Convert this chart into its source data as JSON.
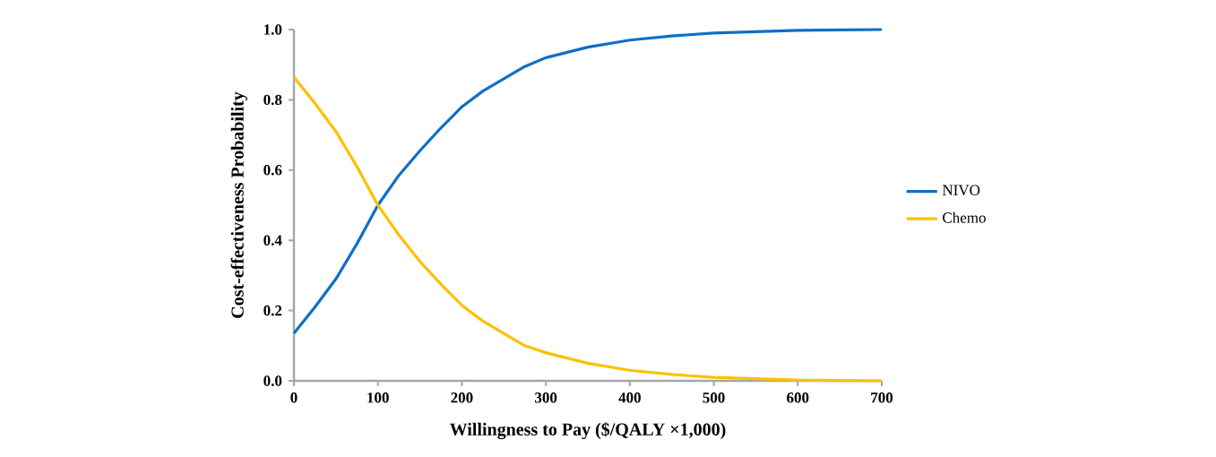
{
  "chart_data": {
    "type": "line",
    "xlabel": "Willingness to Pay ($/QALY ×1,000)",
    "ylabel": "Cost-effectiveness Probability",
    "x": [
      0,
      25,
      50,
      75,
      100,
      125,
      150,
      175,
      200,
      225,
      250,
      275,
      300,
      350,
      400,
      450,
      500,
      550,
      600,
      650,
      700
    ],
    "series": [
      {
        "name": "NIVO",
        "color": "#0f6fc6",
        "values": [
          0.135,
          0.21,
          0.29,
          0.39,
          0.5,
          0.585,
          0.655,
          0.72,
          0.78,
          0.825,
          0.86,
          0.895,
          0.92,
          0.95,
          0.97,
          0.982,
          0.99,
          0.994,
          0.998,
          0.999,
          1.0
        ]
      },
      {
        "name": "Chemo",
        "color": "#ffc000",
        "values": [
          0.865,
          0.79,
          0.71,
          0.61,
          0.5,
          0.415,
          0.34,
          0.275,
          0.215,
          0.17,
          0.135,
          0.1,
          0.08,
          0.05,
          0.03,
          0.018,
          0.01,
          0.006,
          0.002,
          0.001,
          0.0
        ]
      }
    ],
    "xlim": [
      0,
      700
    ],
    "ylim": [
      0,
      1.0
    ],
    "xticks": [
      0,
      100,
      200,
      300,
      400,
      500,
      600,
      700
    ],
    "yticks": [
      {
        "value": 0,
        "label": "0.0"
      },
      {
        "value": 0.2,
        "label": "0.2"
      },
      {
        "value": 0.4,
        "label": "0.4"
      },
      {
        "value": 0.6,
        "label": "0.6"
      },
      {
        "value": 0.8,
        "label": "0.8"
      },
      {
        "value": 1.0,
        "label": "1.0"
      }
    ],
    "grid": false,
    "legend": "right",
    "marker": "none",
    "line_style": "solid"
  }
}
